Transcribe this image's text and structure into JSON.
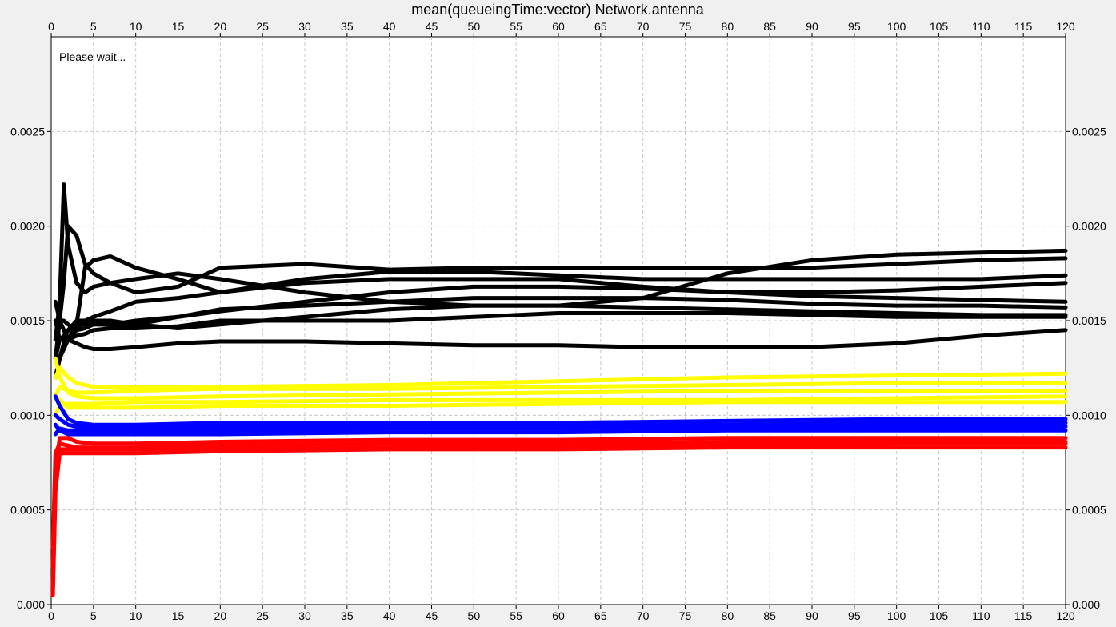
{
  "chart_data": {
    "type": "line",
    "title": "mean(queueingTime:vector) Network.antenna",
    "status_text": "Please wait...",
    "xlim": [
      0,
      120
    ],
    "ylim": [
      0,
      0.003
    ],
    "x_ticks": [
      "0",
      "5",
      "10",
      "15",
      "20",
      "25",
      "30",
      "35",
      "40",
      "45",
      "50",
      "55",
      "60",
      "65",
      "70",
      "75",
      "80",
      "85",
      "90",
      "95",
      "100",
      "105",
      "110",
      "115",
      "120"
    ],
    "y_ticks": [
      "0.000",
      "0.0005",
      "0.0010",
      "0.0015",
      "0.0020",
      "0.0025"
    ],
    "grid": true,
    "series_colors": [
      "#000000",
      "#ffff00",
      "#0000ff",
      "#ff0000"
    ],
    "series": [
      {
        "color": "#000000",
        "x": [
          0.5,
          1.0,
          1.5,
          2.0,
          3.0,
          4,
          5,
          7,
          10,
          15,
          20,
          30,
          40,
          50,
          60,
          70,
          80,
          90,
          100,
          110,
          120
        ],
        "values": [
          0.0014,
          0.0016,
          0.00222,
          0.0019,
          0.0017,
          0.00165,
          0.00168,
          0.0017,
          0.00172,
          0.00175,
          0.00172,
          0.00165,
          0.0016,
          0.00158,
          0.00158,
          0.00162,
          0.00175,
          0.00182,
          0.00185,
          0.00186,
          0.00187
        ]
      },
      {
        "color": "#000000",
        "x": [
          0.5,
          1.0,
          1.5,
          2.0,
          3.0,
          4,
          5,
          7,
          10,
          15,
          20,
          30,
          40,
          50,
          60,
          70,
          80,
          90,
          100,
          110,
          120
        ],
        "values": [
          0.0013,
          0.0015,
          0.0017,
          0.002,
          0.00195,
          0.0018,
          0.00175,
          0.0017,
          0.00165,
          0.00168,
          0.00178,
          0.0018,
          0.00177,
          0.00178,
          0.00178,
          0.00178,
          0.00178,
          0.00178,
          0.0018,
          0.00182,
          0.00183
        ]
      },
      {
        "color": "#000000",
        "x": [
          0.5,
          1.0,
          1.5,
          2.0,
          3.0,
          4,
          5,
          7,
          10,
          15,
          20,
          30,
          40,
          50,
          60,
          70,
          80,
          90,
          100,
          110,
          120
        ],
        "values": [
          0.0016,
          0.0015,
          0.00145,
          0.0014,
          0.00148,
          0.00178,
          0.00182,
          0.00184,
          0.00178,
          0.00172,
          0.00165,
          0.00172,
          0.00176,
          0.00176,
          0.00174,
          0.00172,
          0.00172,
          0.00172,
          0.00172,
          0.00172,
          0.00174
        ]
      },
      {
        "color": "#000000",
        "x": [
          0.5,
          1.0,
          1.5,
          2.0,
          3.0,
          4,
          5,
          7,
          10,
          15,
          20,
          30,
          40,
          50,
          60,
          70,
          80,
          90,
          100,
          110,
          120
        ],
        "values": [
          0.0015,
          0.0014,
          0.0014,
          0.00145,
          0.0015,
          0.0015,
          0.00152,
          0.00155,
          0.0016,
          0.00162,
          0.00165,
          0.0017,
          0.00172,
          0.00172,
          0.00172,
          0.00168,
          0.00165,
          0.00165,
          0.00166,
          0.00168,
          0.0017
        ]
      },
      {
        "color": "#000000",
        "x": [
          0.5,
          1.0,
          1.5,
          2.0,
          3.0,
          4,
          5,
          7,
          10,
          15,
          20,
          30,
          40,
          50,
          60,
          70,
          80,
          90,
          100,
          110,
          120
        ],
        "values": [
          0.0012,
          0.0013,
          0.00135,
          0.0014,
          0.00145,
          0.0015,
          0.00148,
          0.00148,
          0.0015,
          0.00152,
          0.00155,
          0.0016,
          0.00165,
          0.00168,
          0.00168,
          0.00167,
          0.00165,
          0.00163,
          0.00162,
          0.00161,
          0.0016
        ]
      },
      {
        "color": "#000000",
        "x": [
          0.5,
          1.0,
          1.5,
          2.0,
          3.0,
          4,
          5,
          7,
          10,
          15,
          20,
          30,
          40,
          50,
          60,
          70,
          80,
          90,
          100,
          110,
          120
        ],
        "values": [
          0.0014,
          0.0015,
          0.0015,
          0.00148,
          0.00145,
          0.00146,
          0.00148,
          0.00148,
          0.00148,
          0.00152,
          0.00156,
          0.00158,
          0.0016,
          0.00162,
          0.00162,
          0.00162,
          0.00161,
          0.00159,
          0.00158,
          0.00158,
          0.00157
        ]
      },
      {
        "color": "#000000",
        "x": [
          0.5,
          1.0,
          1.5,
          2.0,
          3.0,
          4,
          5,
          7,
          10,
          15,
          20,
          30,
          40,
          50,
          60,
          70,
          80,
          90,
          100,
          110,
          120
        ],
        "values": [
          0.0013,
          0.0014,
          0.00142,
          0.00145,
          0.00148,
          0.00148,
          0.0015,
          0.0015,
          0.00148,
          0.00146,
          0.00148,
          0.00152,
          0.00156,
          0.00158,
          0.00158,
          0.00157,
          0.00156,
          0.00155,
          0.00154,
          0.00153,
          0.00153
        ]
      },
      {
        "color": "#000000",
        "x": [
          0.5,
          1.0,
          1.5,
          2.0,
          3.0,
          4,
          5,
          7,
          10,
          15,
          20,
          30,
          40,
          50,
          60,
          70,
          80,
          90,
          100,
          110,
          120
        ],
        "values": [
          0.0012,
          0.0013,
          0.00138,
          0.0014,
          0.00142,
          0.00143,
          0.00145,
          0.00146,
          0.00146,
          0.00147,
          0.0015,
          0.0015,
          0.0015,
          0.00152,
          0.00154,
          0.00154,
          0.00154,
          0.00153,
          0.00152,
          0.00152,
          0.00152
        ]
      },
      {
        "color": "#000000",
        "x": [
          0.5,
          1.0,
          1.5,
          2.0,
          3.0,
          4,
          5,
          7,
          10,
          15,
          20,
          30,
          40,
          50,
          60,
          70,
          80,
          90,
          100,
          110,
          120
        ],
        "values": [
          0.0012,
          0.0013,
          0.00138,
          0.0014,
          0.00138,
          0.00136,
          0.00135,
          0.00135,
          0.00136,
          0.00138,
          0.00139,
          0.00139,
          0.00138,
          0.00137,
          0.00137,
          0.00136,
          0.00136,
          0.00136,
          0.00138,
          0.00142,
          0.00145
        ]
      },
      {
        "color": "#ffff00",
        "x": [
          0.5,
          1,
          2,
          3,
          5,
          10,
          20,
          40,
          60,
          80,
          100,
          120
        ],
        "values": [
          0.0012,
          0.00125,
          0.0012,
          0.00117,
          0.00115,
          0.00115,
          0.00115,
          0.00116,
          0.00118,
          0.0012,
          0.00121,
          0.00122
        ]
      },
      {
        "color": "#ffff00",
        "x": [
          0.5,
          1,
          2,
          3,
          5,
          10,
          20,
          40,
          60,
          80,
          100,
          120
        ],
        "values": [
          0.0011,
          0.00115,
          0.00113,
          0.00112,
          0.00112,
          0.00113,
          0.00114,
          0.00114,
          0.00115,
          0.00116,
          0.00117,
          0.00117
        ]
      },
      {
        "color": "#ffff00",
        "x": [
          0.5,
          1,
          2,
          3,
          5,
          10,
          20,
          40,
          60,
          80,
          100,
          120
        ],
        "values": [
          0.0013,
          0.0012,
          0.00112,
          0.0011,
          0.00109,
          0.00109,
          0.0011,
          0.00111,
          0.00112,
          0.00113,
          0.00113,
          0.00113
        ]
      },
      {
        "color": "#ffff00",
        "x": [
          0.5,
          1,
          2,
          3,
          5,
          10,
          20,
          40,
          60,
          80,
          100,
          120
        ],
        "values": [
          0.001,
          0.00105,
          0.00106,
          0.00106,
          0.00106,
          0.00107,
          0.00107,
          0.00108,
          0.00108,
          0.00108,
          0.00109,
          0.0011
        ]
      },
      {
        "color": "#ffff00",
        "x": [
          0.5,
          1,
          2,
          3,
          5,
          10,
          20,
          40,
          60,
          80,
          100,
          120
        ],
        "values": [
          0.0011,
          0.00108,
          0.00104,
          0.00104,
          0.00104,
          0.00104,
          0.00105,
          0.00105,
          0.00106,
          0.00107,
          0.00107,
          0.00107
        ]
      },
      {
        "color": "#0000ff",
        "x": [
          0.5,
          1,
          2,
          3,
          5,
          10,
          20,
          40,
          60,
          80,
          100,
          120
        ],
        "values": [
          0.0011,
          0.00105,
          0.00098,
          0.00096,
          0.00095,
          0.00095,
          0.00096,
          0.00096,
          0.00096,
          0.00097,
          0.00098,
          0.00098
        ]
      },
      {
        "color": "#0000ff",
        "x": [
          0.5,
          1,
          2,
          3,
          5,
          10,
          20,
          40,
          60,
          80,
          100,
          120
        ],
        "values": [
          0.001,
          0.00098,
          0.00095,
          0.00094,
          0.00093,
          0.00093,
          0.00094,
          0.00094,
          0.00095,
          0.00095,
          0.00096,
          0.00096
        ]
      },
      {
        "color": "#0000ff",
        "x": [
          0.5,
          1,
          2,
          3,
          5,
          10,
          20,
          40,
          60,
          80,
          100,
          120
        ],
        "values": [
          0.0009,
          0.00093,
          0.00092,
          0.00092,
          0.00092,
          0.00092,
          0.00092,
          0.00093,
          0.00093,
          0.00094,
          0.00094,
          0.00094
        ]
      },
      {
        "color": "#0000ff",
        "x": [
          0.5,
          1,
          2,
          3,
          5,
          10,
          20,
          40,
          60,
          80,
          100,
          120
        ],
        "values": [
          0.00095,
          0.00092,
          0.0009,
          0.0009,
          0.0009,
          0.0009,
          0.0009,
          0.00091,
          0.00091,
          0.00092,
          0.00092,
          0.00092
        ]
      },
      {
        "color": "#ff0000",
        "x": [
          0.2,
          0.5,
          1,
          2,
          3,
          5,
          10,
          20,
          40,
          60,
          80,
          100,
          120
        ],
        "values": [
          0.0002,
          0.0007,
          0.00088,
          0.00088,
          0.00086,
          0.00085,
          0.00085,
          0.00086,
          0.00087,
          0.00087,
          0.00088,
          0.00088,
          0.00088
        ]
      },
      {
        "color": "#ff0000",
        "x": [
          0.2,
          0.5,
          1,
          2,
          3,
          5,
          10,
          20,
          40,
          60,
          80,
          100,
          120
        ],
        "values": [
          0.0003,
          0.0008,
          0.00085,
          0.00084,
          0.00083,
          0.00083,
          0.00083,
          0.00084,
          0.00085,
          0.00085,
          0.00086,
          0.00086,
          0.00086
        ]
      },
      {
        "color": "#ff0000",
        "x": [
          0.2,
          0.5,
          1,
          2,
          3,
          5,
          10,
          20,
          40,
          60,
          80,
          100,
          120
        ],
        "values": [
          0.0001,
          0.00065,
          0.00082,
          0.00082,
          0.00082,
          0.00082,
          0.00082,
          0.00082,
          0.00083,
          0.00084,
          0.00084,
          0.00085,
          0.00085
        ]
      },
      {
        "color": "#ff0000",
        "x": [
          0.2,
          0.5,
          1,
          2,
          3,
          5,
          10,
          20,
          40,
          60,
          80,
          100,
          120
        ],
        "values": [
          5e-05,
          0.0006,
          0.0008,
          0.0008,
          0.0008,
          0.0008,
          0.0008,
          0.00081,
          0.00082,
          0.00082,
          0.00083,
          0.00083,
          0.00083
        ]
      }
    ]
  }
}
